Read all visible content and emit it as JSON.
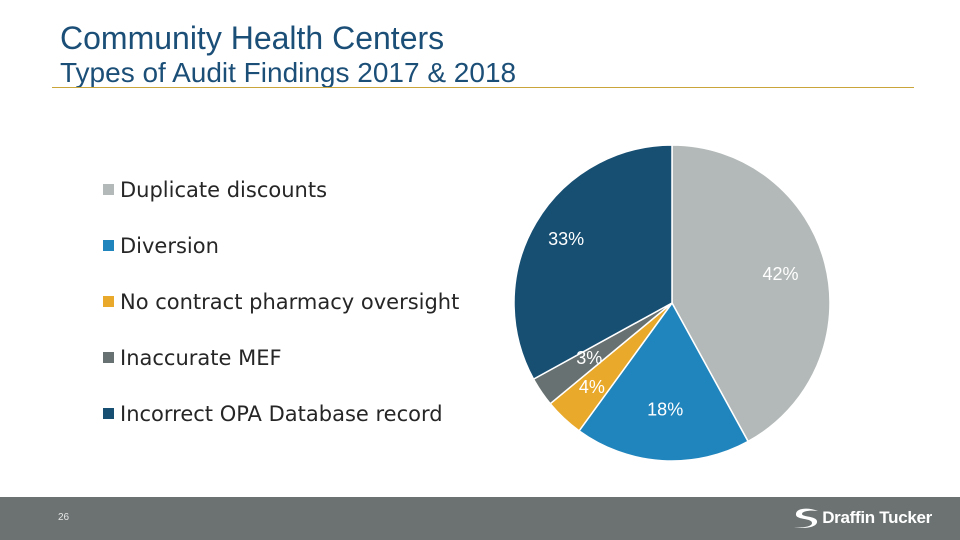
{
  "header": {
    "title": "Community Health Centers",
    "subtitle": "Types of Audit Findings 2017 & 2018"
  },
  "chart_data": {
    "type": "pie",
    "title": "Types of Audit Findings 2017 & 2018",
    "legend_position": "left",
    "slices": [
      {
        "name": "Duplicate discounts",
        "value": 42,
        "label": "42%",
        "color": "#b3b9b8"
      },
      {
        "name": "Diversion",
        "value": 18,
        "label": "18%",
        "color": "#2185bd"
      },
      {
        "name": "No contract pharmacy oversight",
        "value": 4,
        "label": "4%",
        "color": "#e9a92a"
      },
      {
        "name": "Inaccurate MEF",
        "value": 3,
        "label": "3%",
        "color": "#687171"
      },
      {
        "name": "Incorrect OPA Database record",
        "value": 33,
        "label": "33%",
        "color": "#174f73"
      }
    ]
  },
  "footer": {
    "page_number": "26",
    "brand": "Draffin Tucker",
    "background_color": "#6c7272"
  },
  "colors": {
    "title": "#1c4f78",
    "rule": "#c9a53a"
  }
}
